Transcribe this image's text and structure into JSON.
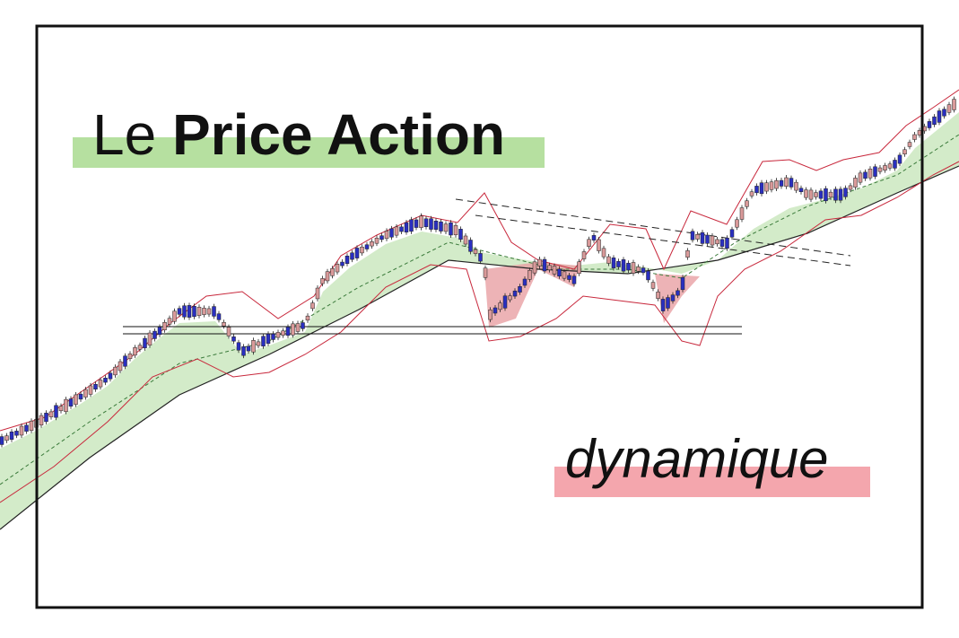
{
  "title": {
    "prefix": "Le",
    "bold": "Price Action"
  },
  "subtitle": "dynamique"
}
